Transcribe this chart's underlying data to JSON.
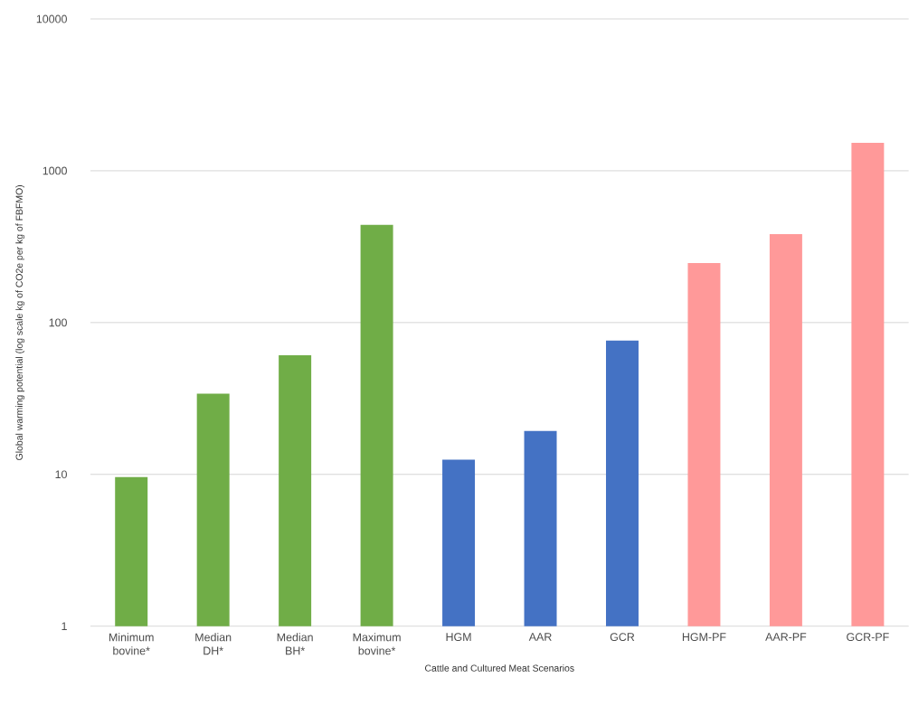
{
  "chart_data": {
    "type": "bar",
    "xlabel": "Cattle and Cultured Meat Scenarios",
    "ylabel": "Global warming potential (log scale kg of CO2e per kg of FBFMO)",
    "categories": [
      "Minimum bovine*",
      "Median DH*",
      "Median BH*",
      "Maximum bovine*",
      "HGM",
      "AAR",
      "GCR",
      "HGM-PF",
      "AAR-PF",
      "GCR-PF"
    ],
    "values": [
      9.6,
      34,
      61,
      440,
      12.5,
      19.3,
      76,
      247,
      383,
      1530
    ],
    "colors": [
      "#70ad47",
      "#70ad47",
      "#70ad47",
      "#70ad47",
      "#4472c4",
      "#4472c4",
      "#4472c4",
      "#ff9999",
      "#ff9999",
      "#ff9999"
    ],
    "log": true,
    "ylim": [
      1,
      10000
    ],
    "yticks": [
      1,
      10,
      100,
      1000,
      10000
    ],
    "grid": "y"
  }
}
